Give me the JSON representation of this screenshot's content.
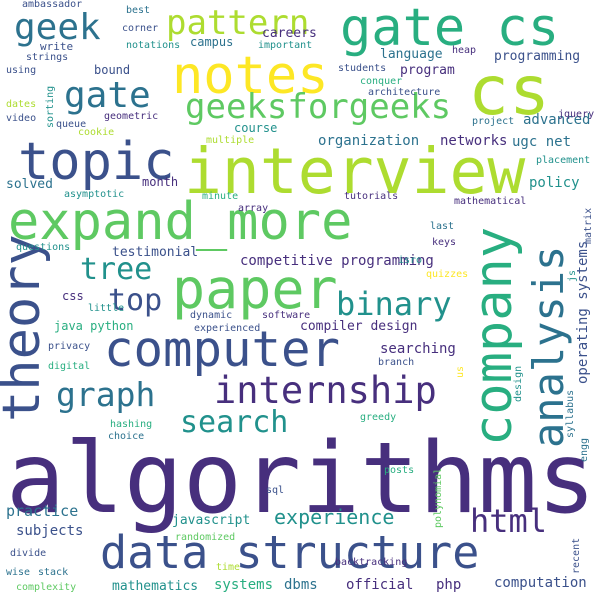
{
  "colors": {
    "background": "#ffffff",
    "purple_dark": "#440154",
    "indigo": "#472f7d",
    "blue_dark": "#3b518b",
    "blue": "#2c728e",
    "teal": "#21918c",
    "green_teal": "#28ae80",
    "green": "#5ec962",
    "lime": "#addc30",
    "yellow": "#fde725"
  },
  "words": {
    "algorithms": "algorithms",
    "data_structure": "data structure",
    "expand_more": "expand_more",
    "interview": "interview",
    "computer": "computer",
    "paper": "paper",
    "company": "company",
    "gate_cs": "gate cs",
    "cs": "cs",
    "notes": "notes",
    "theory": "theory",
    "topic": "topic",
    "analysis": "analysis",
    "internship": "internship",
    "geeksforgeeks": "geeksforgeeks",
    "pattern": "pattern",
    "gate": "gate",
    "geek": "geek",
    "binary": "binary",
    "graph": "graph",
    "search": "search",
    "tree": "tree",
    "top": "top",
    "html": "html",
    "experience": "experience",
    "competitive_programming": "competitive programming",
    "organization": "organization",
    "networks": "networks",
    "ugc_net": "ugc net",
    "advanced": "advanced",
    "policy": "policy",
    "testimonial": "testimonial",
    "compiler_design": "compiler design",
    "searching": "searching",
    "operating_systems": "operating systems",
    "java_python": "java python",
    "javascript": "javascript",
    "practice": "practice",
    "subjects": "subjects",
    "systems": "systems",
    "dbms": "dbms",
    "official": "official",
    "php": "php",
    "computation": "computation",
    "mathematics": "mathematics",
    "language": "language",
    "programming": "programming",
    "program": "program",
    "careers": "careers",
    "campus": "campus",
    "course": "course",
    "month": "month",
    "solved": "solved",
    "bound": "bound",
    "students": "students",
    "architecture": "architecture",
    "conquer": "conquer",
    "heap": "heap",
    "jquery": "jquery",
    "project": "project",
    "placement": "placement",
    "matrix": "matrix",
    "mathematical": "mathematical",
    "tutorials": "tutorials",
    "last": "last",
    "keys": "keys",
    "isro": "isro",
    "quizzes": "quizzes",
    "js": "js",
    "software": "software",
    "dynamic": "dynamic",
    "experienced": "experienced",
    "css": "css",
    "little": "little",
    "privacy": "privacy",
    "digital": "digital",
    "branch": "branch",
    "us": "us",
    "design": "design",
    "hashing": "hashing",
    "choice": "choice",
    "greedy": "greedy",
    "syllabus": "syllabus",
    "engg": "engg",
    "sql": "sql",
    "posts": "posts",
    "polynomial": "polynomial",
    "backtracking": "backtracking",
    "randomized": "randomized",
    "divide": "divide",
    "wise": "wise",
    "stack": "stack",
    "complexity": "complexity",
    "time": "time",
    "recent": "recent",
    "ambassador": "ambassador",
    "best": "best",
    "corner": "corner",
    "notations": "notations",
    "important": "important",
    "write": "write",
    "strings": "strings",
    "using": "using",
    "dates": "dates",
    "video": "video",
    "queue": "queue",
    "sorting": "sorting",
    "geometric": "geometric",
    "cookie": "cookie",
    "asymptotic": "asymptotic",
    "multiple": "multiple",
    "minute": "minute",
    "array": "array",
    "questions": "questions"
  }
}
